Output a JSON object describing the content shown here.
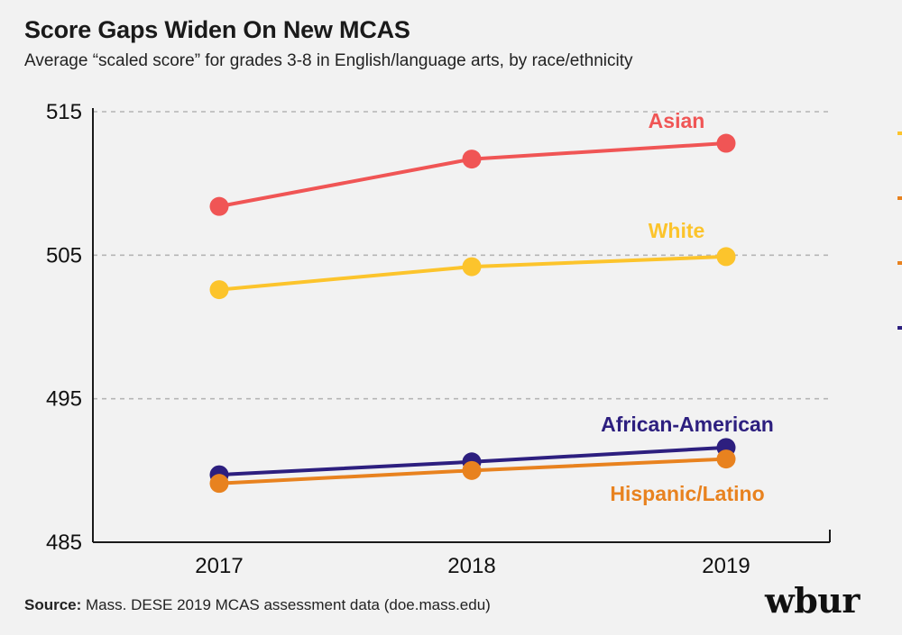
{
  "header": {
    "title": "Score Gaps Widen On New MCAS",
    "subtitle": "Average “scaled score” for grades 3-8 in English/language arts, by race/ethnicity"
  },
  "footer": {
    "source_label": "Source:",
    "source_text": " Mass. DESE 2019 MCAS assessment data (doe.mass.edu)",
    "logo": "wbur"
  },
  "chart_data": {
    "type": "line",
    "title": "Score Gaps Widen On New MCAS",
    "subtitle": "Average “scaled score” for grades 3-8 in English/language arts, by race/ethnicity",
    "xlabel": "",
    "ylabel": "",
    "x": [
      "2017",
      "2018",
      "2019"
    ],
    "ylim": [
      485,
      515
    ],
    "yticks": [
      "515",
      "505",
      "495",
      "485"
    ],
    "grid": true,
    "series": [
      {
        "name": "Asian",
        "color": "#f05555",
        "values": [
          508.4,
          511.7,
          512.8
        ]
      },
      {
        "name": "White",
        "color": "#fcc42c",
        "values": [
          502.6,
          504.2,
          504.9
        ]
      },
      {
        "name": "African-American",
        "color": "#2d1f7f",
        "values": [
          489.7,
          490.6,
          491.6
        ]
      },
      {
        "name": "Hispanic/Latino",
        "color": "#e8821f",
        "values": [
          489.1,
          490.0,
          490.8
        ]
      }
    ]
  }
}
